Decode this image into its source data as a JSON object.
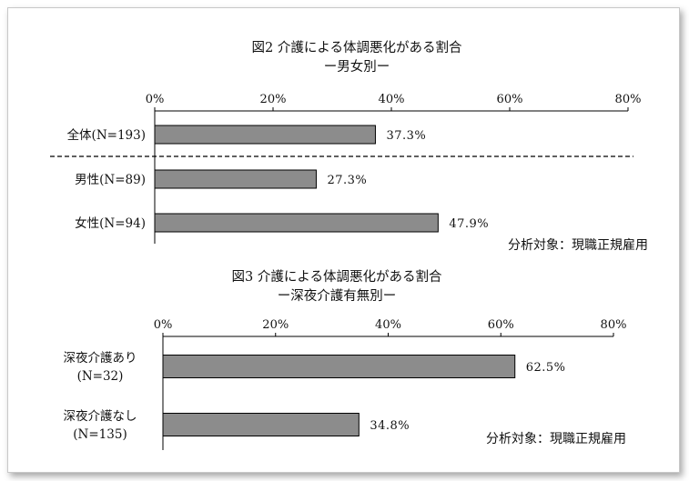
{
  "chart_data": [
    {
      "type": "bar",
      "orientation": "horizontal",
      "title": "図2  介護による体調悪化がある割合",
      "subtitle": "ー男女別ー",
      "categories": [
        "全体(N=193)",
        "男性(N=89)",
        "女性(N=94)"
      ],
      "values": [
        37.3,
        27.3,
        47.9
      ],
      "value_labels": [
        "37.3%",
        "27.3%",
        "47.9%"
      ],
      "xlim": [
        0,
        80
      ],
      "x_ticks": [
        "0%",
        "20%",
        "40%",
        "60%",
        "80%"
      ],
      "note": "分析対象：現職正規雇用",
      "grid": false,
      "separator_after_first": true,
      "bar_color": "#8c8c8c"
    },
    {
      "type": "bar",
      "orientation": "horizontal",
      "title": "図3  介護による体調悪化がある割合",
      "subtitle": "ー深夜介護有無別ー",
      "categories": [
        [
          "深夜介護あり",
          "(N=32)"
        ],
        [
          "深夜介護なし",
          "(N=135)"
        ]
      ],
      "values": [
        62.5,
        34.8
      ],
      "value_labels": [
        "62.5%",
        "34.8%"
      ],
      "xlim": [
        0,
        80
      ],
      "x_ticks": [
        "0%",
        "20%",
        "40%",
        "60%",
        "80%"
      ],
      "note": "分析対象：現職正規雇用",
      "grid": false,
      "bar_color": "#8c8c8c"
    }
  ]
}
